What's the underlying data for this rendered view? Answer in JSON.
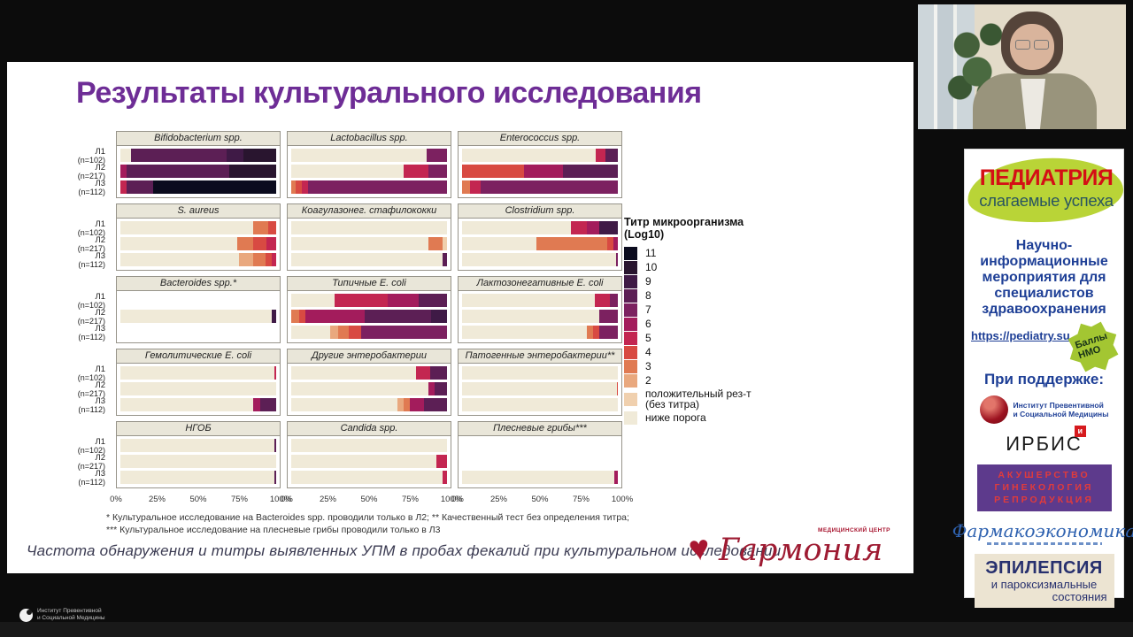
{
  "slide": {
    "title": "Результаты культурального исследования",
    "footnote_line1": "* Культуральное исследование на Bacteroides spp. проводили только в Л2; ** Качественный тест без определения титра;",
    "footnote_line2": "*** Культуральное исследование на плесневые грибы проводили только в Л3",
    "caption": "Частота обнаружения и титры выявленных УПМ в пробах фекалий при культуральном исследовании"
  },
  "chart_data": {
    "type": "bar",
    "subtype": "horizontal_stacked_100pct_small_multiples",
    "x_ticks": [
      "0%",
      "25%",
      "50%",
      "75%",
      "100%"
    ],
    "xlim": [
      0,
      100
    ],
    "row_labels": [
      {
        "lot": "Л1",
        "n": "(n=102)"
      },
      {
        "lot": "Л2",
        "n": "(n=217)"
      },
      {
        "lot": "Л3",
        "n": "(n=112)"
      }
    ],
    "legend": {
      "title_line1": "Титр микроорганизма",
      "title_line2": "(Log10)",
      "items": [
        {
          "key": "t11",
          "label": "11"
        },
        {
          "key": "t10",
          "label": "10"
        },
        {
          "key": "t9",
          "label": "9"
        },
        {
          "key": "t8",
          "label": "8"
        },
        {
          "key": "t7",
          "label": "7"
        },
        {
          "key": "t6",
          "label": "6"
        },
        {
          "key": "t5",
          "label": "5"
        },
        {
          "key": "t4",
          "label": "4"
        },
        {
          "key": "t3",
          "label": "3"
        },
        {
          "key": "t2",
          "label": "2"
        },
        {
          "key": "pos",
          "label": "положительный рез-т\n (без титра)"
        },
        {
          "key": "below",
          "label": "ниже порога"
        }
      ]
    },
    "palette": {
      "t11": "#0b0b1e",
      "t10": "#29152f",
      "t9": "#3f1a46",
      "t8": "#5c1f55",
      "t7": "#7c2160",
      "t6": "#a31c5c",
      "t5": "#c32651",
      "t4": "#d84a42",
      "t3": "#e07a52",
      "t2": "#e9a87e",
      "pos": "#f0d0ae",
      "below": "#f0ead8"
    },
    "panels": [
      {
        "title": "Bifidobacterium spp.",
        "bars": [
          [
            [
              "below",
              7
            ],
            [
              "t8",
              61
            ],
            [
              "t9",
              11
            ],
            [
              "t10",
              21
            ]
          ],
          [
            [
              "t6",
              4
            ],
            [
              "t8",
              66
            ],
            [
              "t10",
              30
            ]
          ],
          [
            [
              "t5",
              4
            ],
            [
              "t8",
              17
            ],
            [
              "t11",
              79
            ]
          ]
        ]
      },
      {
        "title": "Lactobacillus spp.",
        "bars": [
          [
            [
              "below",
              87
            ],
            [
              "t7",
              13
            ]
          ],
          [
            [
              "below",
              72
            ],
            [
              "t5",
              16
            ],
            [
              "t7",
              12
            ]
          ],
          [
            [
              "t3",
              3
            ],
            [
              "t4",
              4
            ],
            [
              "t5",
              4
            ],
            [
              "t7",
              89
            ]
          ]
        ]
      },
      {
        "title": "Enterococcus spp.",
        "bars": [
          [
            [
              "below",
              86
            ],
            [
              "t5",
              6
            ],
            [
              "t8",
              8
            ]
          ],
          [
            [
              "t4",
              40
            ],
            [
              "t6",
              25
            ],
            [
              "t8",
              35
            ]
          ],
          [
            [
              "t3",
              5
            ],
            [
              "t5",
              7
            ],
            [
              "t7",
              88
            ]
          ]
        ]
      },
      {
        "title": "S. aureus",
        "bars": [
          [
            [
              "below",
              85
            ],
            [
              "t3",
              10
            ],
            [
              "t4",
              5
            ]
          ],
          [
            [
              "below",
              75
            ],
            [
              "t3",
              10
            ],
            [
              "t4",
              9
            ],
            [
              "t5",
              6
            ]
          ],
          [
            [
              "below",
              76
            ],
            [
              "t2",
              9
            ],
            [
              "t3",
              8
            ],
            [
              "t4",
              4
            ],
            [
              "t5",
              3
            ]
          ]
        ]
      },
      {
        "title": "Коагулазонег. стафилококки",
        "bars": [
          [
            [
              "below",
              100
            ]
          ],
          [
            [
              "below",
              88
            ],
            [
              "t3",
              9
            ],
            [
              "pos",
              3
            ]
          ],
          [
            [
              "below",
              97
            ],
            [
              "t8",
              3
            ]
          ]
        ]
      },
      {
        "title": "Clostridium spp.",
        "bars": [
          [
            [
              "below",
              70
            ],
            [
              "t5",
              10
            ],
            [
              "t6",
              8
            ],
            [
              "t9",
              12
            ]
          ],
          [
            [
              "below",
              48
            ],
            [
              "t3",
              45
            ],
            [
              "t4",
              4
            ],
            [
              "t6",
              3
            ]
          ],
          [
            [
              "below",
              99
            ],
            [
              "t7",
              1
            ]
          ]
        ]
      },
      {
        "title": "Bacteroides spp.*",
        "bars": [
          [],
          [
            [
              "below",
              97
            ],
            [
              "t9",
              3
            ]
          ],
          []
        ]
      },
      {
        "title": "Типичные E. coli",
        "bars": [
          [
            [
              "below",
              28
            ],
            [
              "t5",
              34
            ],
            [
              "t6",
              20
            ],
            [
              "t8",
              18
            ]
          ],
          [
            [
              "t3",
              5
            ],
            [
              "t4",
              4
            ],
            [
              "t6",
              38
            ],
            [
              "t8",
              43
            ],
            [
              "t9",
              10
            ]
          ],
          [
            [
              "below",
              25
            ],
            [
              "t2",
              5
            ],
            [
              "t3",
              7
            ],
            [
              "t4",
              8
            ],
            [
              "t7",
              55
            ]
          ]
        ]
      },
      {
        "title": "Лактозонегативные E. coli",
        "bars": [
          [
            [
              "below",
              85
            ],
            [
              "t5",
              10
            ],
            [
              "t7",
              5
            ]
          ],
          [
            [
              "below",
              88
            ],
            [
              "t7",
              12
            ]
          ],
          [
            [
              "below",
              80
            ],
            [
              "t3",
              4
            ],
            [
              "t4",
              4
            ],
            [
              "t7",
              12
            ]
          ]
        ]
      },
      {
        "title": "Гемолитические E. coli",
        "bars": [
          [
            [
              "below",
              99
            ],
            [
              "t5",
              1
            ]
          ],
          [
            [
              "below",
              100
            ]
          ],
          [
            [
              "below",
              85
            ],
            [
              "t6",
              5
            ],
            [
              "t8",
              10
            ]
          ]
        ]
      },
      {
        "title": "Другие энтеробактерии",
        "bars": [
          [
            [
              "below",
              80
            ],
            [
              "t5",
              9
            ],
            [
              "t8",
              11
            ]
          ],
          [
            [
              "below",
              88
            ],
            [
              "t6",
              4
            ],
            [
              "t8",
              8
            ]
          ],
          [
            [
              "below",
              68
            ],
            [
              "t2",
              4
            ],
            [
              "t3",
              4
            ],
            [
              "t6",
              9
            ],
            [
              "t8",
              15
            ]
          ]
        ]
      },
      {
        "title": "Патогенные энтеробактерии**",
        "bars": [
          [
            [
              "below",
              100
            ]
          ],
          [
            [
              "below",
              99.5
            ],
            [
              "t4",
              0.5
            ]
          ],
          [
            [
              "below",
              100
            ]
          ]
        ]
      },
      {
        "title": "НГОБ",
        "bars": [
          [
            [
              "below",
              99
            ],
            [
              "t8",
              1
            ]
          ],
          [
            [
              "below",
              100
            ]
          ],
          [
            [
              "below",
              99
            ],
            [
              "t8",
              1
            ]
          ]
        ]
      },
      {
        "title": "Candida spp.",
        "bars": [
          [
            [
              "below",
              100
            ]
          ],
          [
            [
              "below",
              93
            ],
            [
              "t5",
              7
            ]
          ],
          [
            [
              "below",
              97
            ],
            [
              "t5",
              3
            ]
          ]
        ]
      },
      {
        "title": "Плесневые грибы***",
        "bars": [
          [],
          [],
          [
            [
              "below",
              98
            ],
            [
              "t6",
              2
            ]
          ]
        ]
      }
    ]
  },
  "harmony": {
    "top_label": "МЕДИЦИНСКИЙ ЦЕНТР",
    "name": "Гармония"
  },
  "sidebar": {
    "pediatria_line1": "ПЕДИАТРИЯ",
    "pediatria_line2": "слагаемые успеха",
    "subtitle": "Научно-информационные мероприятия для специалистов здравоохранения",
    "link": "https://pediatry.su",
    "badge_line1": "Баллы",
    "badge_line2": "НМО",
    "support_label": "При поддержке:",
    "ipsm_line1": "Институт Превентивной",
    "ipsm_line2": "и Социальной Медицины",
    "irbis": "ИРБИС",
    "irbis_mark": "и",
    "agr_line1": "АКУШЕРСТВО",
    "agr_line2": "ГИНЕКОЛОГИЯ",
    "agr_line3": "РЕПРОДУКЦИЯ",
    "pharm": "Фармакоэкономика",
    "epi_line1": "ЭПИЛЕПСИЯ",
    "epi_line2": "и пароксизмальные",
    "epi_line3": "состояния"
  },
  "footer": {
    "inst_line1": "Институт Превентивной",
    "inst_line2": "и Социальной Медицины"
  }
}
